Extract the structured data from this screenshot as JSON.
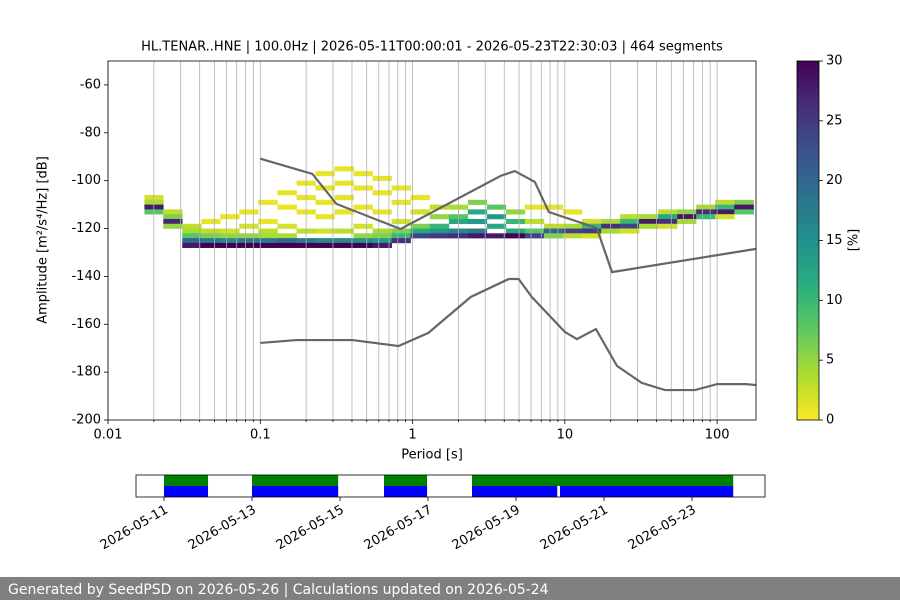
{
  "chart_data": [
    {
      "type": "heatmap",
      "title": "HL.TENAR..HNE | 100.0Hz | 2026-05-11T00:00:01 - 2026-05-23T22:30:03 | 464 segments",
      "xlabel": "Period [s]",
      "ylabel": "Amplitude [m²/s⁴/Hz] [dB]",
      "xscale": "log",
      "xlim": [
        0.01,
        180
      ],
      "ylim": [
        -200,
        -50
      ],
      "xticks": [
        0.01,
        0.1,
        1,
        10,
        100
      ],
      "xminorticks": [
        0.02,
        0.03,
        0.04,
        0.05,
        0.06,
        0.07,
        0.08,
        0.09,
        0.2,
        0.3,
        0.4,
        0.5,
        0.6,
        0.7,
        0.8,
        0.9,
        2,
        3,
        4,
        5,
        6,
        7,
        8,
        9,
        20,
        30,
        40,
        50,
        60,
        70,
        80,
        90
      ],
      "yticks": [
        -200,
        -180,
        -160,
        -140,
        -120,
        -100,
        -80,
        -60
      ],
      "grid": "x",
      "db_bin": 2,
      "columns": [
        {
          "period": 0.02,
          "cells": [
            [
              -107,
              2
            ],
            [
              -109,
              4
            ],
            [
              -111,
              28
            ],
            [
              -113,
              8
            ]
          ]
        },
        {
          "period": 0.0266,
          "cells": [
            [
              -113,
              3
            ],
            [
              -115,
              6
            ],
            [
              -117,
              27
            ],
            [
              -119,
              5
            ]
          ]
        },
        {
          "period": 0.0355,
          "cells": [
            [
              -119,
              3
            ],
            [
              -121,
              4
            ],
            [
              -123,
              8
            ],
            [
              -125,
              20
            ],
            [
              -127,
              28
            ]
          ]
        },
        {
          "period": 0.0473,
          "cells": [
            [
              -117,
              1
            ],
            [
              -121,
              3
            ],
            [
              -123,
              6
            ],
            [
              -125,
              18
            ],
            [
              -127,
              30
            ]
          ]
        },
        {
          "period": 0.0631,
          "cells": [
            [
              -115,
              1
            ],
            [
              -121,
              2
            ],
            [
              -123,
              5
            ],
            [
              -125,
              16
            ],
            [
              -127,
              30
            ]
          ]
        },
        {
          "period": 0.0841,
          "cells": [
            [
              -113,
              1
            ],
            [
              -119,
              2
            ],
            [
              -123,
              5
            ],
            [
              -125,
              18
            ],
            [
              -127,
              30
            ]
          ]
        },
        {
          "period": 0.112,
          "cells": [
            [
              -109,
              1
            ],
            [
              -117,
              1
            ],
            [
              -121,
              3
            ],
            [
              -123,
              4
            ],
            [
              -125,
              18
            ],
            [
              -127,
              30
            ]
          ]
        },
        {
          "period": 0.15,
          "cells": [
            [
              -105,
              1
            ],
            [
              -111,
              1
            ],
            [
              -119,
              2
            ],
            [
              -123,
              4
            ],
            [
              -125,
              20
            ],
            [
              -127,
              30
            ]
          ]
        },
        {
          "period": 0.2,
          "cells": [
            [
              -101,
              1
            ],
            [
              -107,
              1
            ],
            [
              -113,
              1
            ],
            [
              -121,
              3
            ],
            [
              -125,
              18
            ],
            [
              -127,
              30
            ]
          ]
        },
        {
          "period": 0.266,
          "cells": [
            [
              -97,
              1
            ],
            [
              -103,
              1
            ],
            [
              -109,
              1
            ],
            [
              -115,
              1
            ],
            [
              -121,
              2
            ],
            [
              -125,
              16
            ],
            [
              -127,
              30
            ]
          ]
        },
        {
          "period": 0.355,
          "cells": [
            [
              -95,
              1
            ],
            [
              -101,
              1
            ],
            [
              -107,
              1
            ],
            [
              -113,
              1
            ],
            [
              -121,
              3
            ],
            [
              -125,
              16
            ],
            [
              -127,
              30
            ]
          ]
        },
        {
          "period": 0.473,
          "cells": [
            [
              -97,
              1
            ],
            [
              -103,
              1
            ],
            [
              -111,
              1
            ],
            [
              -119,
              2
            ],
            [
              -123,
              5
            ],
            [
              -125,
              15
            ],
            [
              -127,
              30
            ]
          ]
        },
        {
          "period": 0.631,
          "cells": [
            [
              -99,
              1
            ],
            [
              -105,
              1
            ],
            [
              -113,
              1
            ],
            [
              -121,
              4
            ],
            [
              -123,
              6
            ],
            [
              -125,
              14
            ],
            [
              -127,
              28
            ]
          ]
        },
        {
          "period": 0.841,
          "cells": [
            [
              -103,
              1
            ],
            [
              -109,
              1
            ],
            [
              -117,
              2
            ],
            [
              -121,
              6
            ],
            [
              -123,
              10
            ],
            [
              -125,
              26
            ]
          ]
        },
        {
          "period": 1.12,
          "cells": [
            [
              -107,
              1
            ],
            [
              -113,
              2
            ],
            [
              -119,
              6
            ],
            [
              -121,
              12
            ],
            [
              -123,
              24
            ]
          ]
        },
        {
          "period": 1.5,
          "cells": [
            [
              -111,
              3
            ],
            [
              -115,
              5
            ],
            [
              -119,
              10
            ],
            [
              -121,
              14
            ],
            [
              -123,
              25
            ]
          ]
        },
        {
          "period": 2.0,
          "cells": [
            [
              -111,
              4
            ],
            [
              -115,
              8
            ],
            [
              -117,
              12
            ],
            [
              -121,
              16
            ],
            [
              -123,
              26
            ]
          ]
        },
        {
          "period": 2.66,
          "cells": [
            [
              -109,
              6
            ],
            [
              -113,
              12
            ],
            [
              -117,
              14
            ],
            [
              -121,
              18
            ],
            [
              -123,
              28
            ]
          ]
        },
        {
          "period": 3.55,
          "cells": [
            [
              -111,
              8
            ],
            [
              -115,
              14
            ],
            [
              -119,
              12
            ],
            [
              -123,
              28
            ]
          ]
        },
        {
          "period": 4.73,
          "cells": [
            [
              -113,
              5
            ],
            [
              -117,
              10
            ],
            [
              -121,
              12
            ],
            [
              -123,
              30
            ]
          ]
        },
        {
          "period": 6.31,
          "cells": [
            [
              -111,
              1
            ],
            [
              -117,
              3
            ],
            [
              -121,
              8
            ],
            [
              -123,
              24
            ]
          ]
        },
        {
          "period": 8.41,
          "cells": [
            [
              -111,
              1
            ],
            [
              -119,
              3
            ],
            [
              -121,
              20
            ],
            [
              -123,
              6
            ]
          ]
        },
        {
          "period": 11.2,
          "cells": [
            [
              -113,
              1
            ],
            [
              -119,
              4
            ],
            [
              -121,
              24
            ],
            [
              -123,
              3
            ]
          ]
        },
        {
          "period": 15.0,
          "cells": [
            [
              -117,
              2
            ],
            [
              -119,
              10
            ],
            [
              -121,
              25
            ],
            [
              -123,
              2
            ]
          ]
        },
        {
          "period": 20.0,
          "cells": [
            [
              -117,
              4
            ],
            [
              -119,
              26
            ],
            [
              -121,
              4
            ]
          ]
        },
        {
          "period": 26.6,
          "cells": [
            [
              -115,
              3
            ],
            [
              -117,
              10
            ],
            [
              -119,
              24
            ],
            [
              -121,
              2
            ]
          ]
        },
        {
          "period": 35.5,
          "cells": [
            [
              -115,
              4
            ],
            [
              -117,
              28
            ],
            [
              -119,
              4
            ]
          ]
        },
        {
          "period": 47.3,
          "cells": [
            [
              -113,
              3
            ],
            [
              -115,
              12
            ],
            [
              -117,
              26
            ],
            [
              -119,
              2
            ]
          ]
        },
        {
          "period": 63.1,
          "cells": [
            [
              -113,
              5
            ],
            [
              -115,
              28
            ],
            [
              -117,
              4
            ]
          ]
        },
        {
          "period": 84.1,
          "cells": [
            [
              -111,
              4
            ],
            [
              -113,
              26
            ],
            [
              -115,
              10
            ]
          ]
        },
        {
          "period": 112,
          "cells": [
            [
              -109,
              3
            ],
            [
              -111,
              10
            ],
            [
              -113,
              28
            ],
            [
              -115,
              2
            ]
          ]
        },
        {
          "period": 150,
          "cells": [
            [
              -109,
              6
            ],
            [
              -111,
              28
            ],
            [
              -113,
              8
            ]
          ]
        }
      ],
      "colorbar": {
        "label": "[%]",
        "lim": [
          0,
          30
        ],
        "ticks": [
          0,
          5,
          10,
          15,
          20,
          25,
          30
        ],
        "colormap": [
          "#fde725",
          "#addc30",
          "#5ec962",
          "#28ae80",
          "#21918c",
          "#2c728e",
          "#3b528b",
          "#472d7b",
          "#440154"
        ]
      },
      "series": [
        {
          "color": "#666666",
          "x": [
            0.1,
            0.22,
            0.316,
            0.834,
            3.79,
            4.69,
            6.35,
            7.85,
            16.2,
            20.4,
            180
          ],
          "values": [
            -90.8,
            -97.2,
            -109.7,
            -120.2,
            -98.0,
            -96.0,
            -100.5,
            -113.1,
            -119.8,
            -138.2,
            -128.5
          ]
        },
        {
          "color": "#666666",
          "x": [
            0.1,
            0.173,
            0.403,
            0.81,
            1.27,
            2.41,
            4.28,
            4.97,
            6.07,
            10,
            12,
            16,
            22,
            32,
            45.5,
            71.6,
            100,
            155,
            180
          ],
          "values": [
            -167.8,
            -166.6,
            -166.6,
            -169.1,
            -163.6,
            -148.6,
            -141.1,
            -141.1,
            -148.6,
            -163.2,
            -166.2,
            -162.0,
            -177.4,
            -184.5,
            -187.5,
            -187.5,
            -185.0,
            -185.0,
            -185.4
          ]
        }
      ]
    },
    {
      "type": "timeline",
      "xlim": [
        "2026-05-10T08:43",
        "2026-05-24T15:50"
      ],
      "xticks": [
        "2026-05-11",
        "2026-05-13",
        "2026-05-15",
        "2026-05-17",
        "2026-05-19",
        "2026-05-21",
        "2026-05-23"
      ],
      "series": [
        {
          "color": "#008000",
          "intervals": [
            [
              "2026-05-11T00:00",
              "2026-05-12T00:00"
            ],
            [
              "2026-05-13T00:00",
              "2026-05-14T23:00"
            ],
            [
              "2026-05-16T00:00",
              "2026-05-16T23:30"
            ],
            [
              "2026-05-18T00:00",
              "2026-05-23T22:30"
            ]
          ]
        },
        {
          "color": "#0000ff",
          "intervals": [
            [
              "2026-05-11T00:00",
              "2026-05-12T00:00"
            ],
            [
              "2026-05-13T00:00",
              "2026-05-14T23:00"
            ],
            [
              "2026-05-16T00:00",
              "2026-05-16T23:30"
            ],
            [
              "2026-05-18T00:00",
              "2026-05-19T22:30"
            ],
            [
              "2026-05-20T00:00",
              "2026-05-23T22:30"
            ]
          ]
        }
      ]
    }
  ],
  "footer": "Generated by SeedPSD on 2026-05-26 | Calculations updated on 2026-05-24"
}
